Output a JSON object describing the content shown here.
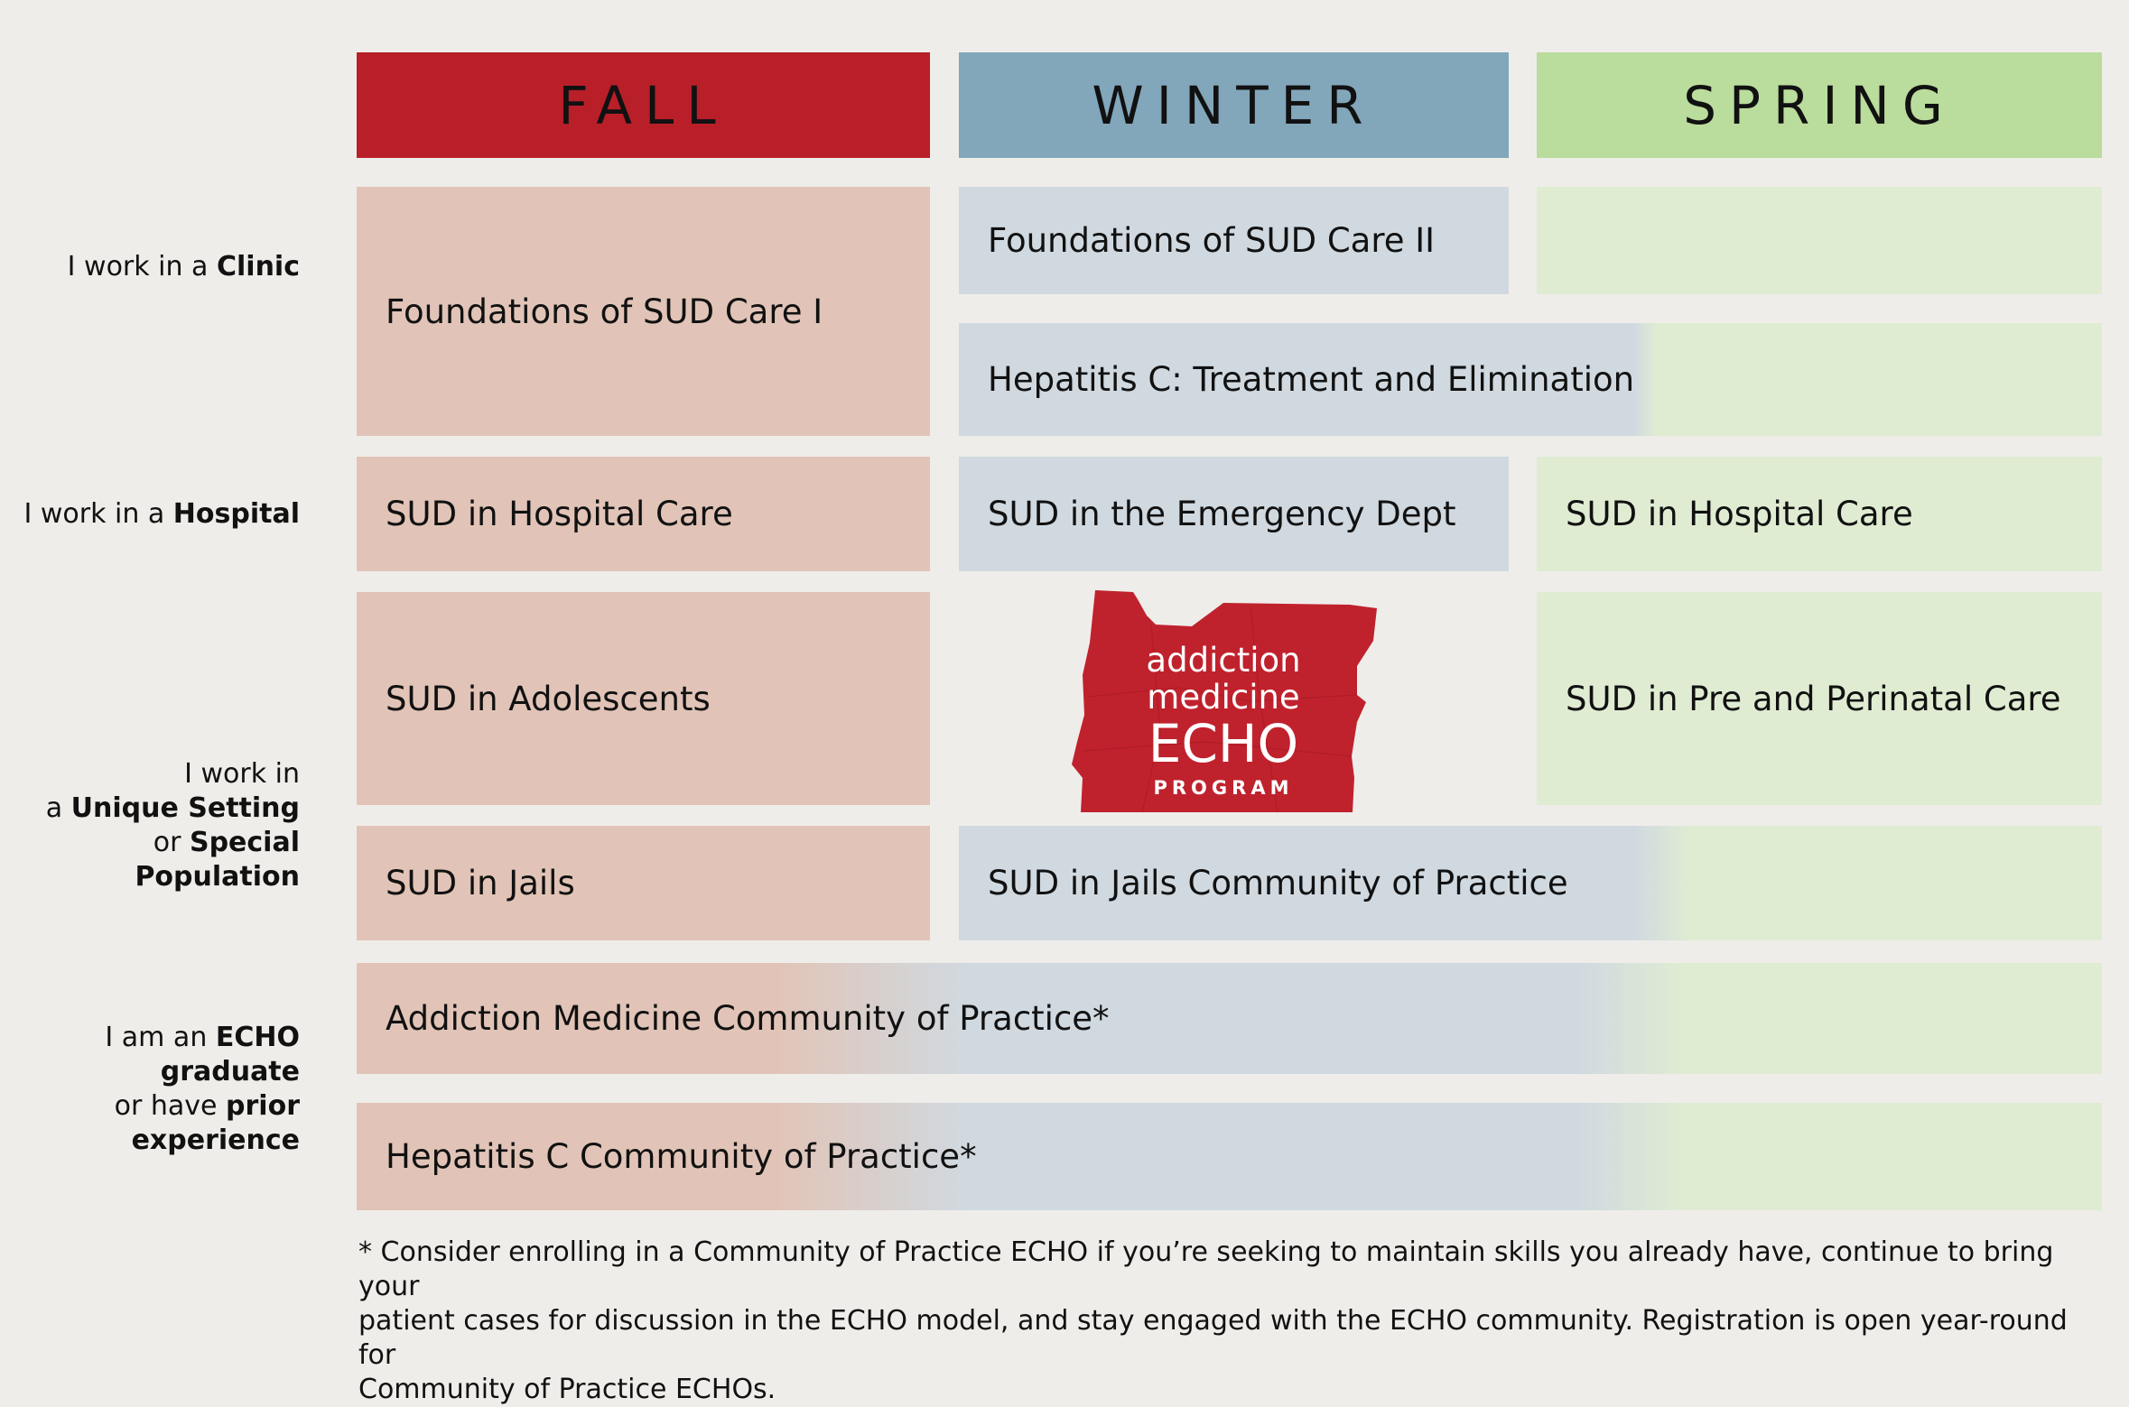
{
  "headers": {
    "fall": "FALL",
    "winter": "WINTER",
    "spring": "SPRING"
  },
  "row_labels": {
    "clinic": {
      "prefix": "I work in a ",
      "bold": "Clinic"
    },
    "hospital": {
      "prefix": "I work in a ",
      "bold": "Hospital"
    },
    "unique": {
      "line1": "I work in",
      "line2_prefix": "a ",
      "line2_bold": "Unique Setting",
      "line3_prefix": "or ",
      "line3_bold": "Special",
      "line4_bold": "Population"
    },
    "graduate": {
      "line1_prefix": "I am an ",
      "line1_bold": "ECHO",
      "line2_bold": "graduate",
      "line3_prefix": "or have ",
      "line3_bold": "prior",
      "line4_bold": "experience"
    }
  },
  "cells": {
    "fall_clinic": "Foundations of SUD Care I",
    "winter_clinic": "Foundations of SUD Care II",
    "hepc_treatment": "Hepatitis C: Treatment and Elimination",
    "fall_hospital": "SUD in Hospital Care",
    "winter_hospital": "SUD in the Emergency Dept",
    "spring_hospital": "SUD in Hospital Care",
    "fall_adolescents": "SUD in Adolescents",
    "spring_perinatal": "SUD in Pre and Perinatal Care",
    "fall_jails": "SUD in Jails",
    "jails_cop": "SUD in Jails Community of Practice",
    "addiction_cop": "Addiction Medicine Community of Practice*",
    "hepc_cop": "Hepatitis C Community of Practice*"
  },
  "logo": {
    "line1": "addiction",
    "line2": "medicine",
    "line3": "ECHO",
    "line4": "PROGRAM"
  },
  "footnote": {
    "line1": "* Consider enrolling in a Community of Practice ECHO if you’re seeking to maintain skills you already have, continue to bring your",
    "line2": "patient cases for discussion in the ECHO model, and stay engaged with the ECHO community. Registration is open year-round for",
    "line3": "Community of Practice ECHOs."
  },
  "colors": {
    "fall": "#b91f29",
    "winter": "#82a6ba",
    "spring": "#badc9c",
    "logo_red": "#c0222d"
  }
}
